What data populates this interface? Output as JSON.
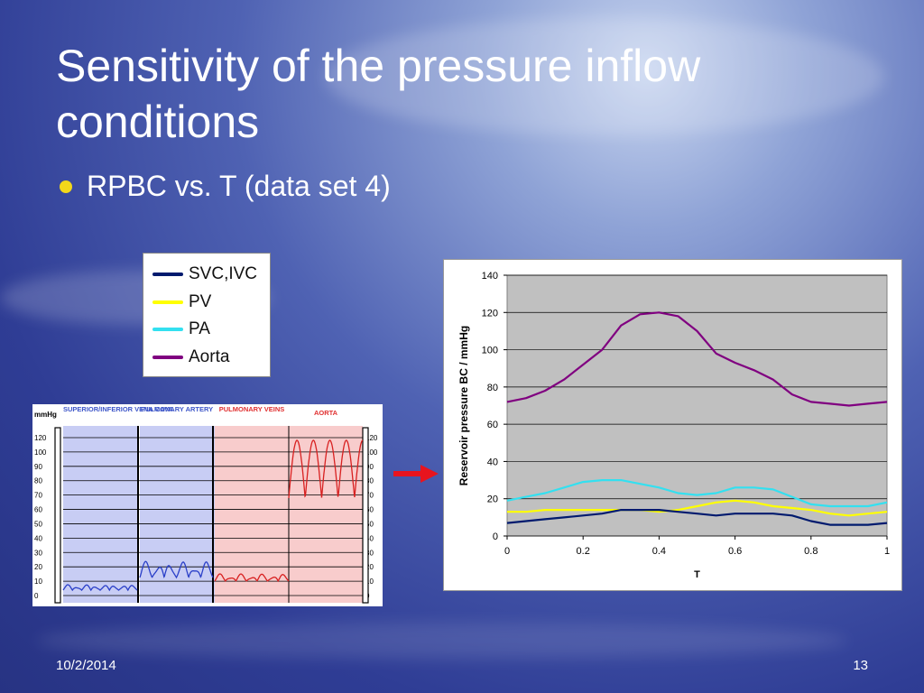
{
  "slide": {
    "title": "Sensitivity of the pressure inflow conditions",
    "bullet": "RPBC vs. T (data set 4)",
    "date": "10/2/2014",
    "page_number": "13"
  },
  "legend": [
    {
      "label": "SVC,IVC",
      "color": "#001a6e"
    },
    {
      "label": "PV",
      "color": "#ffff00"
    },
    {
      "label": "PA",
      "color": "#33e0f0"
    },
    {
      "label": "Aorta",
      "color": "#800080"
    }
  ],
  "monitor": {
    "unit": "mmHg",
    "headers": [
      "SUPERIOR/INFERIOR VENA CAVA",
      "PULMONARY ARTERY",
      "PULMONARY VEINS",
      "AORTA"
    ],
    "scale": [
      "120",
      "100",
      "90",
      "80",
      "70",
      "60",
      "50",
      "40",
      "30",
      "20",
      "10",
      "0"
    ],
    "colors": {
      "blue_bg": "#c8cdf4",
      "pink_bg": "#f8cccc",
      "blue_header": "#3c55c8",
      "red_header": "#e03030",
      "blue_wave": "#2a3fc8",
      "red_wave": "#d82020"
    }
  },
  "chart_data": {
    "type": "line",
    "title": "",
    "xlabel": "T",
    "ylabel": "Reservoir pressure BC / mmHg",
    "xlim": [
      0,
      1
    ],
    "ylim": [
      0,
      140
    ],
    "x_ticks": [
      "0",
      "0.2",
      "0.4",
      "0.6",
      "0.8",
      "1"
    ],
    "y_ticks": [
      "0",
      "20",
      "40",
      "60",
      "80",
      "100",
      "120",
      "140"
    ],
    "plot_background": "#c0c0c0",
    "grid": "horizontal",
    "legend": "none",
    "x": [
      0,
      0.05,
      0.1,
      0.15,
      0.2,
      0.25,
      0.3,
      0.35,
      0.4,
      0.45,
      0.5,
      0.55,
      0.6,
      0.65,
      0.7,
      0.75,
      0.8,
      0.85,
      0.9,
      0.95,
      1.0
    ],
    "series": [
      {
        "name": "Aorta",
        "color": "#800080",
        "values": [
          72,
          74,
          78,
          84,
          92,
          100,
          113,
          119,
          120,
          118,
          110,
          98,
          93,
          89,
          84,
          76,
          72,
          71,
          70,
          71,
          72
        ]
      },
      {
        "name": "PA",
        "color": "#33e0f0",
        "values": [
          19,
          21,
          23,
          26,
          29,
          30,
          30,
          28,
          26,
          23,
          22,
          23,
          26,
          26,
          25,
          21,
          17,
          16,
          16,
          16,
          18
        ]
      },
      {
        "name": "PV",
        "color": "#ffff00",
        "values": [
          13,
          13,
          14,
          14,
          14,
          14,
          14,
          14,
          13,
          14,
          16,
          18,
          19,
          18,
          16,
          15,
          14,
          12,
          11,
          12,
          13
        ]
      },
      {
        "name": "SVC,IVC",
        "color": "#001a6e",
        "values": [
          7,
          8,
          9,
          10,
          11,
          12,
          14,
          14,
          14,
          13,
          12,
          11,
          12,
          12,
          12,
          11,
          8,
          6,
          6,
          6,
          7
        ]
      }
    ]
  }
}
